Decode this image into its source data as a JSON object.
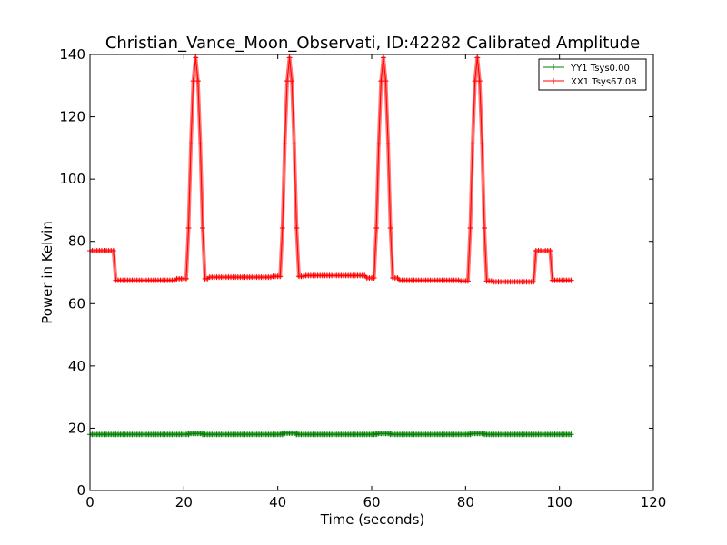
{
  "chart_data": {
    "type": "line",
    "title": "Christian_Vance_Moon_Observati, ID:42282 Calibrated Amplitude",
    "xlabel": "Time (seconds)",
    "ylabel": "Power in Kelvin",
    "xlim": [
      0,
      120
    ],
    "ylim": [
      0,
      140
    ],
    "xticks": [
      0,
      20,
      40,
      60,
      80,
      100,
      120
    ],
    "yticks": [
      0,
      20,
      40,
      60,
      80,
      100,
      120,
      140
    ],
    "legend": {
      "position": "top-right",
      "entries": [
        {
          "label": "YY1 Tsys0.00",
          "color": "#008000"
        },
        {
          "label": "XX1 Tsys67.08",
          "color": "#ff0000"
        }
      ]
    },
    "series": [
      {
        "name": "YY1 Tsys0.00",
        "color": "#008000",
        "segments": [
          {
            "t0": 0,
            "t1": 21,
            "v": 18.0
          },
          {
            "t0": 21,
            "t1": 24,
            "v": 18.3
          },
          {
            "t0": 24,
            "t1": 41,
            "v": 18.0
          },
          {
            "t0": 41,
            "t1": 44,
            "v": 18.4
          },
          {
            "t0": 44,
            "t1": 61,
            "v": 18.0
          },
          {
            "t0": 61,
            "t1": 64,
            "v": 18.3
          },
          {
            "t0": 64,
            "t1": 81,
            "v": 18.0
          },
          {
            "t0": 81,
            "t1": 84,
            "v": 18.3
          },
          {
            "t0": 84,
            "t1": 102.8,
            "v": 18.0
          }
        ],
        "step": 0.5
      },
      {
        "name": "XX1 Tsys67.08",
        "color": "#ff0000",
        "baseline_segments": [
          {
            "t0": 0,
            "t1": 5,
            "v": 77.0
          },
          {
            "t0": 5.2,
            "t1": 18,
            "v": 67.5
          },
          {
            "t0": 25.5,
            "t1": 38.5,
            "v": 68.5
          },
          {
            "t0": 46,
            "t1": 58.5,
            "v": 69.0
          },
          {
            "t0": 66,
            "t1": 78.5,
            "v": 67.5
          },
          {
            "t0": 86,
            "t1": 94.5,
            "v": 67.0
          },
          {
            "t0": 94.8,
            "t1": 98.2,
            "v": 77.0
          },
          {
            "t0": 98.4,
            "t1": 102.8,
            "v": 67.5
          }
        ],
        "peaks": [
          {
            "center": 22.5,
            "height": 139,
            "sigma": 1.5
          },
          {
            "center": 42.5,
            "height": 139,
            "sigma": 1.5
          },
          {
            "center": 62.5,
            "height": 139,
            "sigma": 1.5
          },
          {
            "center": 82.5,
            "height": 139,
            "sigma": 1.5
          }
        ],
        "step": 0.5
      }
    ]
  }
}
